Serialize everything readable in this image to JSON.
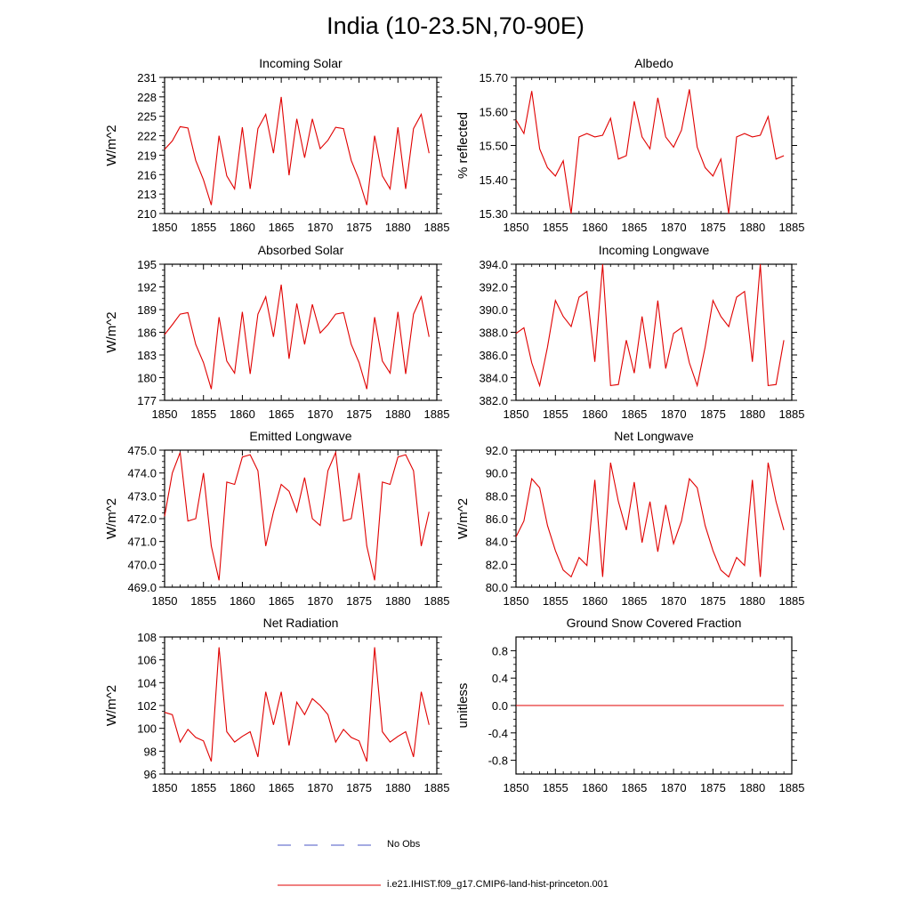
{
  "page": {
    "title": "India (10-23.5N,70-90E)"
  },
  "legend": {
    "items": [
      {
        "label": "No Obs",
        "style": "dashed",
        "color": "#4a55c4"
      },
      {
        "label": "i.e21.IHIST.f09_g17.CMIP6-land-hist-princeton.001",
        "style": "solid",
        "color": "#e00000"
      }
    ]
  },
  "chart_data": [
    {
      "type": "line",
      "title": "Incoming Solar",
      "ylabel": "W/m^2",
      "xlabel": "",
      "xlim": [
        1850,
        1885
      ],
      "ylim": [
        210,
        231
      ],
      "xticks": [
        "1850",
        "1855",
        "1860",
        "1865",
        "1870",
        "1875",
        "1880",
        "1885"
      ],
      "yticks": [
        "210",
        "213",
        "216",
        "219",
        "222",
        "225",
        "228",
        "231"
      ],
      "x": [
        1850,
        1851,
        1852,
        1853,
        1854,
        1855,
        1856,
        1857,
        1858,
        1859,
        1860,
        1861,
        1862,
        1863,
        1864,
        1865,
        1866,
        1867,
        1868,
        1869,
        1870,
        1871,
        1872,
        1873,
        1874,
        1875,
        1876,
        1877,
        1878,
        1879,
        1880,
        1881,
        1882,
        1883,
        1884
      ],
      "series": [
        {
          "color": "#e00000",
          "values": [
            219.9,
            221.2,
            223.4,
            223.2,
            218.2,
            215.2,
            211.3,
            222.0,
            215.8,
            213.8,
            223.3,
            213.8,
            223.1,
            225.3,
            219.3,
            228.0,
            215.9,
            224.6,
            218.6,
            224.6,
            220.0,
            221.3,
            223.3,
            223.1,
            218.2,
            215.2,
            211.3,
            222.0,
            215.8,
            213.8,
            223.3,
            213.8,
            223.1,
            225.3,
            219.3
          ]
        }
      ],
      "grid": false
    },
    {
      "type": "line",
      "title": "Albedo",
      "ylabel": "% reflected",
      "xlabel": "",
      "xlim": [
        1850,
        1885
      ],
      "ylim": [
        15.3,
        15.7
      ],
      "xticks": [
        "1850",
        "1855",
        "1860",
        "1865",
        "1870",
        "1875",
        "1880",
        "1885"
      ],
      "yticks": [
        "15.30",
        "15.40",
        "15.50",
        "15.60",
        "15.70"
      ],
      "x": [
        1850,
        1851,
        1852,
        1853,
        1854,
        1855,
        1856,
        1857,
        1858,
        1859,
        1860,
        1861,
        1862,
        1863,
        1864,
        1865,
        1866,
        1867,
        1868,
        1869,
        1870,
        1871,
        1872,
        1873,
        1874,
        1875,
        1876,
        1877,
        1878,
        1879,
        1880,
        1881,
        1882,
        1883,
        1884
      ],
      "series": [
        {
          "color": "#e00000",
          "values": [
            15.575,
            15.535,
            15.66,
            15.49,
            15.435,
            15.41,
            15.455,
            15.3,
            15.525,
            15.535,
            15.525,
            15.53,
            15.58,
            15.46,
            15.47,
            15.63,
            15.525,
            15.49,
            15.64,
            15.525,
            15.495,
            15.545,
            15.665,
            15.495,
            15.435,
            15.41,
            15.46,
            15.3,
            15.525,
            15.535,
            15.525,
            15.53,
            15.585,
            15.46,
            15.47
          ]
        }
      ],
      "grid": false
    },
    {
      "type": "line",
      "title": "Absorbed Solar",
      "ylabel": "W/m^2",
      "xlabel": "",
      "xlim": [
        1850,
        1885
      ],
      "ylim": [
        177,
        195
      ],
      "xticks": [
        "1850",
        "1855",
        "1860",
        "1865",
        "1870",
        "1875",
        "1880",
        "1885"
      ],
      "yticks": [
        "177",
        "180",
        "183",
        "186",
        "189",
        "192",
        "195"
      ],
      "x": [
        1850,
        1851,
        1852,
        1853,
        1854,
        1855,
        1856,
        1857,
        1858,
        1859,
        1860,
        1861,
        1862,
        1863,
        1864,
        1865,
        1866,
        1867,
        1868,
        1869,
        1870,
        1871,
        1872,
        1873,
        1874,
        1875,
        1876,
        1877,
        1878,
        1879,
        1880,
        1881,
        1882,
        1883,
        1884
      ],
      "series": [
        {
          "color": "#e00000",
          "values": [
            185.7,
            187.0,
            188.4,
            188.6,
            184.4,
            182.0,
            178.5,
            188.0,
            182.2,
            180.6,
            188.7,
            180.5,
            188.4,
            190.7,
            185.4,
            192.3,
            182.5,
            189.8,
            184.4,
            189.7,
            185.9,
            187.0,
            188.4,
            188.6,
            184.4,
            182.0,
            178.5,
            188.0,
            182.2,
            180.6,
            188.7,
            180.5,
            188.4,
            190.7,
            185.4
          ]
        }
      ],
      "grid": false
    },
    {
      "type": "line",
      "title": "Incoming Longwave",
      "ylabel": "",
      "xlabel": "",
      "xlim": [
        1850,
        1885
      ],
      "ylim": [
        382.0,
        394.0
      ],
      "xticks": [
        "1850",
        "1855",
        "1860",
        "1865",
        "1870",
        "1875",
        "1880",
        "1885"
      ],
      "yticks": [
        "382.0",
        "384.0",
        "386.0",
        "388.0",
        "390.0",
        "392.0",
        "394.0"
      ],
      "x": [
        1850,
        1851,
        1852,
        1853,
        1854,
        1855,
        1856,
        1857,
        1858,
        1859,
        1860,
        1861,
        1862,
        1863,
        1864,
        1865,
        1866,
        1867,
        1868,
        1869,
        1870,
        1871,
        1872,
        1873,
        1874,
        1875,
        1876,
        1877,
        1878,
        1879,
        1880,
        1881,
        1882,
        1883,
        1884
      ],
      "series": [
        {
          "color": "#e00000",
          "values": [
            387.9,
            388.4,
            385.3,
            383.3,
            386.7,
            390.8,
            389.4,
            388.5,
            391.1,
            391.6,
            385.4,
            394.0,
            383.3,
            383.4,
            387.3,
            384.4,
            389.4,
            384.8,
            390.8,
            384.8,
            387.9,
            388.4,
            385.3,
            383.3,
            386.7,
            390.8,
            389.4,
            388.5,
            391.1,
            391.6,
            385.4,
            394.0,
            383.3,
            383.4,
            387.3
          ]
        }
      ],
      "grid": false
    },
    {
      "type": "line",
      "title": "Emitted Longwave",
      "ylabel": "W/m^2",
      "xlabel": "",
      "xlim": [
        1850,
        1885
      ],
      "ylim": [
        469.0,
        475.0
      ],
      "xticks": [
        "1850",
        "1855",
        "1860",
        "1865",
        "1870",
        "1875",
        "1880",
        "1885"
      ],
      "yticks": [
        "469.0",
        "470.0",
        "471.0",
        "472.0",
        "473.0",
        "474.0",
        "475.0"
      ],
      "x": [
        1850,
        1851,
        1852,
        1853,
        1854,
        1855,
        1856,
        1857,
        1858,
        1859,
        1860,
        1861,
        1862,
        1863,
        1864,
        1865,
        1866,
        1867,
        1868,
        1869,
        1870,
        1871,
        1872,
        1873,
        1874,
        1875,
        1876,
        1877,
        1878,
        1879,
        1880,
        1881,
        1882,
        1883,
        1884
      ],
      "series": [
        {
          "color": "#e00000",
          "values": [
            472.1,
            474.0,
            474.9,
            471.9,
            472.0,
            474.0,
            470.8,
            469.3,
            473.6,
            473.5,
            474.7,
            474.8,
            474.1,
            470.8,
            472.3,
            473.5,
            473.2,
            472.3,
            473.8,
            472.0,
            471.7,
            474.1,
            474.9,
            471.9,
            472.0,
            474.0,
            470.8,
            469.3,
            473.6,
            473.5,
            474.7,
            474.8,
            474.1,
            470.8,
            472.3
          ]
        }
      ],
      "grid": false
    },
    {
      "type": "line",
      "title": "Net Longwave",
      "ylabel": "W/m^2",
      "xlabel": "",
      "xlim": [
        1850,
        1885
      ],
      "ylim": [
        80.0,
        92.0
      ],
      "xticks": [
        "1850",
        "1855",
        "1860",
        "1865",
        "1870",
        "1875",
        "1880",
        "1885"
      ],
      "yticks": [
        "80.0",
        "82.0",
        "84.0",
        "86.0",
        "88.0",
        "90.0",
        "92.0"
      ],
      "x": [
        1850,
        1851,
        1852,
        1853,
        1854,
        1855,
        1856,
        1857,
        1858,
        1859,
        1860,
        1861,
        1862,
        1863,
        1864,
        1865,
        1866,
        1867,
        1868,
        1869,
        1870,
        1871,
        1872,
        1873,
        1874,
        1875,
        1876,
        1877,
        1878,
        1879,
        1880,
        1881,
        1882,
        1883,
        1884
      ],
      "series": [
        {
          "color": "#e00000",
          "values": [
            84.4,
            85.8,
            89.5,
            88.7,
            85.4,
            83.2,
            81.5,
            80.9,
            82.6,
            81.9,
            89.4,
            80.9,
            90.9,
            87.5,
            85.0,
            89.2,
            83.9,
            87.5,
            83.1,
            87.2,
            83.8,
            85.8,
            89.5,
            88.7,
            85.4,
            83.2,
            81.5,
            80.9,
            82.6,
            81.9,
            89.4,
            80.9,
            90.9,
            87.5,
            85.0
          ]
        }
      ],
      "grid": false
    },
    {
      "type": "line",
      "title": "Net Radiation",
      "ylabel": "W/m^2",
      "xlabel": "",
      "xlim": [
        1850,
        1885
      ],
      "ylim": [
        96,
        108
      ],
      "xticks": [
        "1850",
        "1855",
        "1860",
        "1865",
        "1870",
        "1875",
        "1880",
        "1885"
      ],
      "yticks": [
        "96",
        "98",
        "100",
        "102",
        "104",
        "106",
        "108"
      ],
      "x": [
        1850,
        1851,
        1852,
        1853,
        1854,
        1855,
        1856,
        1857,
        1858,
        1859,
        1860,
        1861,
        1862,
        1863,
        1864,
        1865,
        1866,
        1867,
        1868,
        1869,
        1870,
        1871,
        1872,
        1873,
        1874,
        1875,
        1876,
        1877,
        1878,
        1879,
        1880,
        1881,
        1882,
        1883,
        1884
      ],
      "series": [
        {
          "color": "#e00000",
          "values": [
            101.4,
            101.2,
            98.8,
            99.9,
            99.2,
            98.9,
            97.1,
            107.1,
            99.7,
            98.8,
            99.3,
            99.7,
            97.5,
            103.2,
            100.3,
            103.2,
            98.5,
            102.3,
            101.2,
            102.6,
            102.0,
            101.2,
            98.8,
            99.9,
            99.2,
            98.9,
            97.1,
            107.1,
            99.7,
            98.8,
            99.3,
            99.7,
            97.5,
            103.2,
            100.3
          ]
        }
      ],
      "grid": false
    },
    {
      "type": "line",
      "title": "Ground Snow Covered Fraction",
      "ylabel": "unitless",
      "xlabel": "",
      "xlim": [
        1850,
        1885
      ],
      "ylim": [
        -1.0,
        1.0
      ],
      "xticks": [
        "1850",
        "1855",
        "1860",
        "1865",
        "1870",
        "1875",
        "1880",
        "1885"
      ],
      "yticks": [
        "-0.8",
        "-0.4",
        "0.0",
        "0.4",
        "0.8"
      ],
      "x": [
        1850,
        1884
      ],
      "series": [
        {
          "color": "#e00000",
          "values": [
            0.0,
            0.0
          ]
        }
      ],
      "grid": false
    }
  ]
}
